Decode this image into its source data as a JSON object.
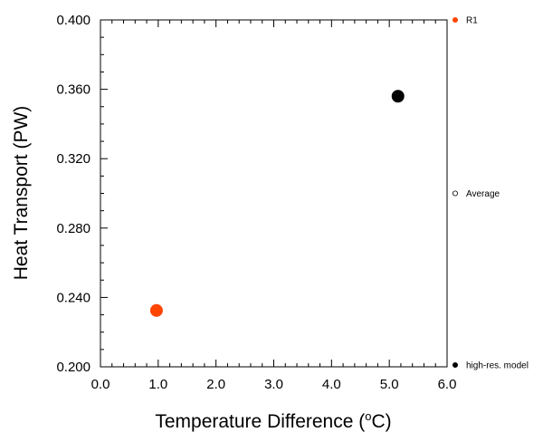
{
  "chart_data": {
    "type": "scatter",
    "xlabel_main": "Temperature Difference (",
    "xlabel_super": "o",
    "xlabel_tail": "C)",
    "ylabel": "Heat Transport (PW)",
    "xlim": [
      0,
      6
    ],
    "ylim": [
      0.2,
      0.4
    ],
    "x_ticks": [
      "0.0",
      "1.0",
      "2.0",
      "3.0",
      "4.0",
      "5.0",
      "6.0"
    ],
    "y_ticks": [
      "0.200",
      "0.240",
      "0.280",
      "0.320",
      "0.360",
      "0.400"
    ],
    "x_tick_values": [
      0,
      1,
      2,
      3,
      4,
      5,
      6
    ],
    "y_tick_values": [
      0.2,
      0.24,
      0.28,
      0.32,
      0.36,
      0.4
    ],
    "points": [
      {
        "x": 0.97,
        "y": 0.2325,
        "color": "#ff4500",
        "style": "filled",
        "series": "R1"
      },
      {
        "x": 5.15,
        "y": 0.356,
        "color": "#000000",
        "style": "filled",
        "series": "high-res. model"
      }
    ],
    "legend": [
      {
        "label": "R1",
        "color": "#ff4500",
        "style": "filled"
      },
      {
        "label": "Average",
        "color": "#000000",
        "style": "hollow"
      },
      {
        "label": "high-res. model",
        "color": "#000000",
        "style": "filled"
      }
    ],
    "legend_placement": "right",
    "grid": false
  }
}
